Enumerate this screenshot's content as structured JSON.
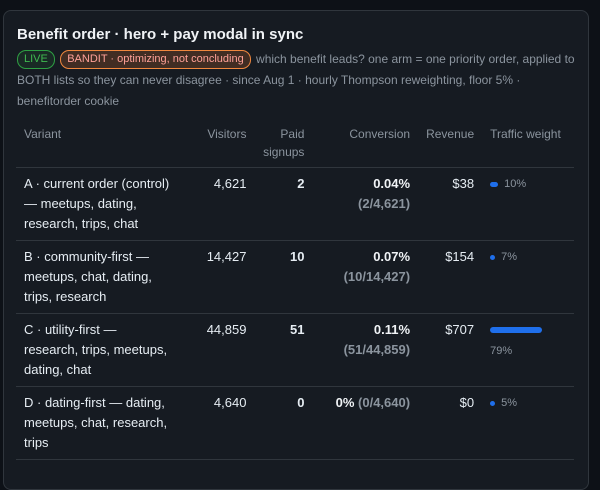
{
  "panel": {
    "title": "Benefit order · hero + pay modal in sync",
    "badges": {
      "live": "LIVE",
      "bandit": "BANDIT · optimizing, not concluding"
    },
    "description": "which benefit leads? one arm = one priority order, applied to BOTH lists so they can never disagree · since Aug 1 · hourly Thompson reweighting, floor 5% · benefitorder cookie"
  },
  "table": {
    "headers": {
      "variant": "Variant",
      "visitors": "Visitors",
      "paid_signups": "Paid signups",
      "conversion": "Conversion",
      "revenue": "Revenue",
      "traffic_weight": "Traffic weight"
    },
    "rows": [
      {
        "variant": "A · current order (control) — meetups, dating, research, trips, chat",
        "visitors": "4,621",
        "paid": "2",
        "conversion": "0.04%",
        "conversion_detail": "(2/4,621)",
        "revenue": "$38",
        "weight_label": "10%",
        "weight_fraction": 0.1
      },
      {
        "variant": "B · community-first — meetups, chat, dating, trips, research",
        "visitors": "14,427",
        "paid": "10",
        "conversion": "0.07%",
        "conversion_detail": "(10/14,427)",
        "revenue": "$154",
        "weight_label": "7%",
        "weight_fraction": 0.07
      },
      {
        "variant": "C · utility-first — research, trips, meetups, dating, chat",
        "visitors": "44,859",
        "paid": "51",
        "conversion": "0.11%",
        "conversion_detail": "(51/44,859)",
        "revenue": "$707",
        "weight_label": "79%",
        "weight_fraction": 0.79
      },
      {
        "variant": "D · dating-first — dating, meetups, chat, research, trips",
        "visitors": "4,640",
        "paid": "0",
        "conversion": "0%",
        "conversion_detail": "(0/4,640)",
        "revenue": "$0",
        "weight_label": "5%",
        "weight_fraction": 0.05
      }
    ]
  },
  "colors": {
    "accent": "#1f6feb",
    "live": "#3fb950",
    "bandit": "#ffa198"
  }
}
